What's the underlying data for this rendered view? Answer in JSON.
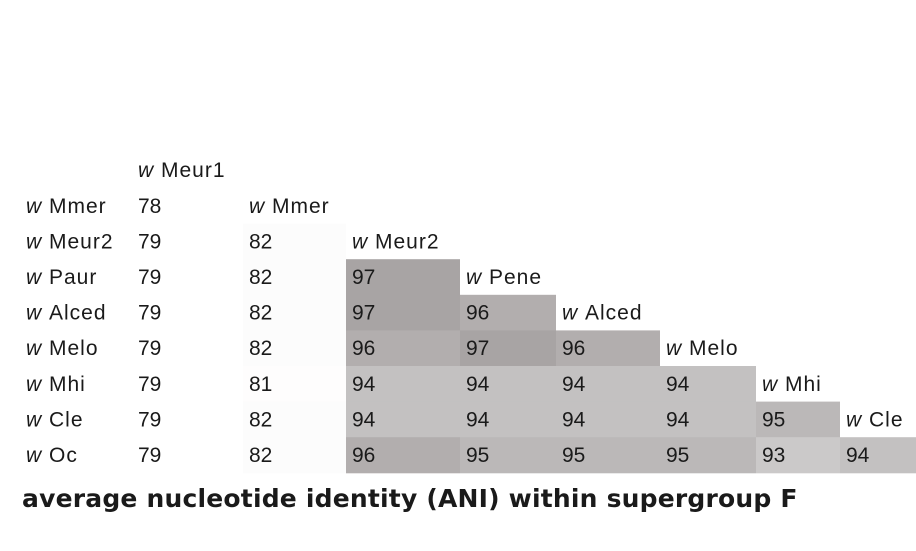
{
  "chart_data": {
    "type": "heatmap",
    "title": "average nucleotide identity (ANI) within supergroup F",
    "label_prefix": "w",
    "column_labels": [
      "Meur1",
      "Mmer",
      "Meur2",
      "Pene",
      "Alced",
      "Melo",
      "Mhi",
      "Cle"
    ],
    "row_labels": [
      "Mmer",
      "Meur2",
      "Paur",
      "Alced",
      "Melo",
      "Mhi",
      "Cle",
      "Oc"
    ],
    "values": [
      [
        78
      ],
      [
        79,
        82
      ],
      [
        79,
        82,
        97
      ],
      [
        79,
        82,
        97,
        96
      ],
      [
        79,
        82,
        96,
        97,
        96
      ],
      [
        79,
        81,
        94,
        94,
        94,
        94
      ],
      [
        79,
        82,
        94,
        94,
        94,
        94,
        95
      ],
      [
        79,
        82,
        96,
        95,
        95,
        95,
        93,
        94
      ]
    ],
    "color_scale": {
      "low": 78,
      "high": 97,
      "low_color": "#ffffff",
      "high_color": "#a8a4a4"
    }
  }
}
